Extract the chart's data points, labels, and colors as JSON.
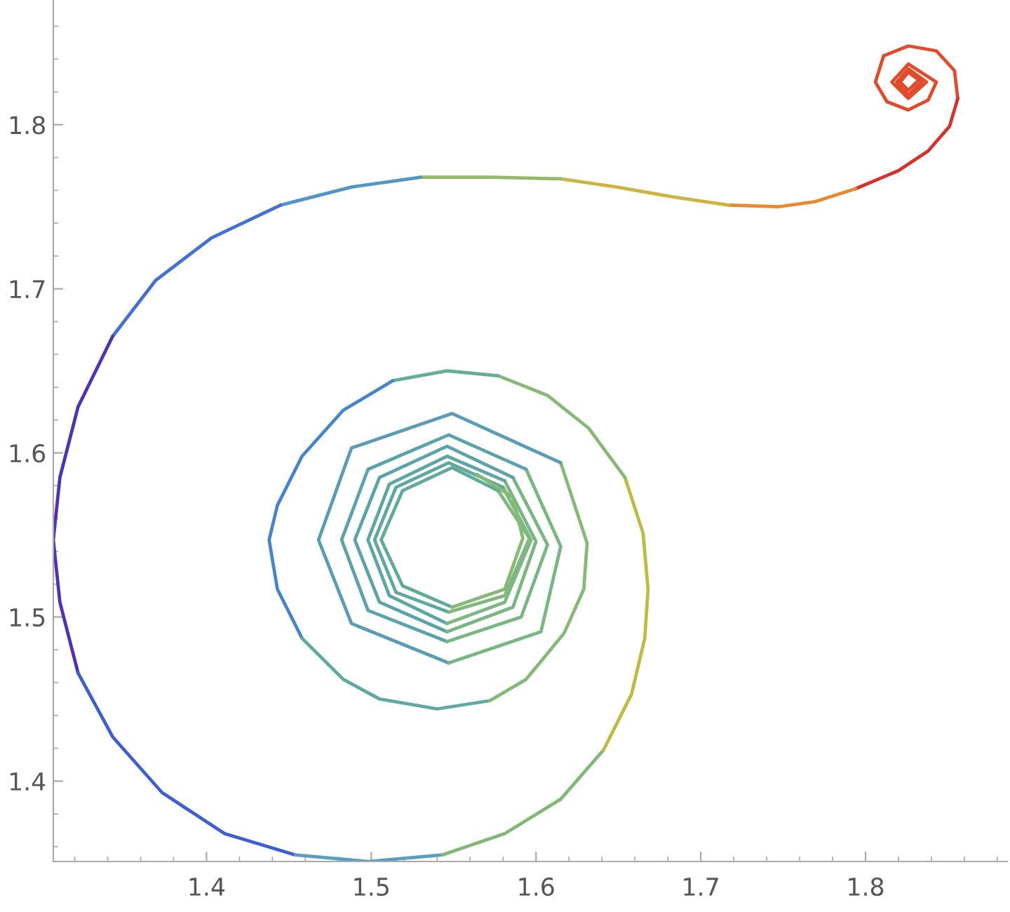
{
  "chart_data": {
    "type": "line",
    "xlim": [
      1.307,
      1.886
    ],
    "ylim": [
      1.351,
      1.876
    ],
    "xticks": [
      1.4,
      1.5,
      1.6,
      1.7,
      1.8
    ],
    "yticks": [
      1.4,
      1.5,
      1.6,
      1.7,
      1.8
    ],
    "grid": false,
    "legend": false,
    "marker": "none",
    "line_style": "solid",
    "series": [
      {
        "color": "#e24a2a",
        "x": [
          1.831,
          1.826,
          1.821,
          1.826,
          1.834,
          1.826,
          1.819,
          1.826,
          1.837,
          1.826,
          1.816,
          1.826,
          1.843,
          1.838,
          1.826,
          1.813,
          1.806,
          1.811,
          1.826,
          1.843,
          1.854,
          1.856
        ],
        "values": [
          1.826,
          1.821,
          1.826,
          1.832,
          1.826,
          1.818,
          1.826,
          1.834,
          1.826,
          1.816,
          1.826,
          1.837,
          1.826,
          1.815,
          1.809,
          1.814,
          1.826,
          1.842,
          1.848,
          1.845,
          1.833,
          1.816
        ]
      },
      {
        "color": "#d9302a",
        "x": [
          1.856,
          1.851,
          1.838,
          1.82,
          1.794
        ],
        "values": [
          1.816,
          1.799,
          1.784,
          1.772,
          1.761
        ]
      },
      {
        "color": "#e8892f",
        "x": [
          1.794,
          1.769,
          1.747,
          1.717
        ],
        "values": [
          1.761,
          1.753,
          1.75,
          1.751
        ]
      },
      {
        "color": "#cdb43c",
        "x": [
          1.717,
          1.683,
          1.649,
          1.615
        ],
        "values": [
          1.751,
          1.756,
          1.762,
          1.767
        ]
      },
      {
        "color": "#93ba66",
        "x": [
          1.615,
          1.573,
          1.53
        ],
        "values": [
          1.767,
          1.768,
          1.768
        ]
      },
      {
        "color": "#5296c6",
        "x": [
          1.53,
          1.488,
          1.445
        ],
        "values": [
          1.768,
          1.762,
          1.751
        ]
      },
      {
        "color": "#4170d6",
        "x": [
          1.445,
          1.403,
          1.369,
          1.343
        ],
        "values": [
          1.751,
          1.731,
          1.705,
          1.671
        ]
      },
      {
        "color": "#4f30b8",
        "x": [
          1.343,
          1.322,
          1.311,
          1.307,
          1.311,
          1.322
        ],
        "values": [
          1.671,
          1.628,
          1.585,
          1.547,
          1.509,
          1.466
        ]
      },
      {
        "color": "#3f5ed2",
        "x": [
          1.322,
          1.343,
          1.373,
          1.411,
          1.454
        ],
        "values": [
          1.466,
          1.427,
          1.393,
          1.368,
          1.355
        ]
      },
      {
        "color": "#5a9ec0",
        "x": [
          1.454,
          1.498,
          1.543
        ],
        "values": [
          1.355,
          1.351,
          1.355
        ]
      },
      {
        "color": "#82b876",
        "x": [
          1.543,
          1.581,
          1.615,
          1.641
        ],
        "values": [
          1.355,
          1.368,
          1.389,
          1.419
        ]
      },
      {
        "color": "#beba42",
        "x": [
          1.641,
          1.658,
          1.666,
          1.668,
          1.665,
          1.654
        ],
        "values": [
          1.419,
          1.453,
          1.487,
          1.517,
          1.551,
          1.585
        ]
      },
      {
        "color": "#86b876",
        "x": [
          1.654,
          1.632,
          1.607,
          1.577
        ],
        "values": [
          1.585,
          1.615,
          1.635,
          1.647
        ]
      },
      {
        "color": "#62ae96",
        "x": [
          1.577,
          1.546,
          1.513
        ],
        "values": [
          1.647,
          1.65,
          1.644
        ]
      },
      {
        "color": "#4684cc",
        "x": [
          1.513,
          1.483,
          1.458,
          1.443,
          1.438,
          1.443,
          1.458
        ],
        "values": [
          1.644,
          1.626,
          1.598,
          1.568,
          1.547,
          1.517,
          1.487
        ]
      },
      {
        "color": "#5eaaa0",
        "x": [
          1.458,
          1.483,
          1.505,
          1.54,
          1.572
        ],
        "values": [
          1.487,
          1.462,
          1.45,
          1.444,
          1.449
        ]
      },
      {
        "color": "#84ba76",
        "x": [
          1.572,
          1.594,
          1.617,
          1.629,
          1.631,
          1.615
        ],
        "values": [
          1.449,
          1.462,
          1.49,
          1.517,
          1.545,
          1.594
        ]
      },
      {
        "color": "#5a9cb6",
        "x": [
          1.615,
          1.549,
          1.488,
          1.468,
          1.488,
          1.547
        ],
        "values": [
          1.594,
          1.624,
          1.603,
          1.547,
          1.496,
          1.472
        ]
      },
      {
        "color": "#78b682",
        "x": [
          1.547,
          1.603,
          1.615,
          1.594
        ],
        "values": [
          1.472,
          1.491,
          1.543,
          1.59
        ]
      },
      {
        "color": "#5aa2ac",
        "x": [
          1.594,
          1.547,
          1.498,
          1.482,
          1.498,
          1.546
        ],
        "values": [
          1.59,
          1.611,
          1.59,
          1.547,
          1.504,
          1.485
        ]
      },
      {
        "color": "#78b682",
        "x": [
          1.546,
          1.591,
          1.607,
          1.586
        ],
        "values": [
          1.485,
          1.5,
          1.544,
          1.585
        ]
      },
      {
        "color": "#5aa4a8",
        "x": [
          1.586,
          1.546,
          1.505,
          1.49,
          1.505,
          1.546
        ],
        "values": [
          1.585,
          1.604,
          1.585,
          1.547,
          1.509,
          1.491
        ]
      },
      {
        "color": "#7ab682",
        "x": [
          1.546,
          1.586,
          1.6,
          1.581
        ],
        "values": [
          1.491,
          1.506,
          1.546,
          1.583
        ]
      },
      {
        "color": "#5ca6a4",
        "x": [
          1.581,
          1.546,
          1.511,
          1.498,
          1.511,
          1.546
        ],
        "values": [
          1.583,
          1.598,
          1.581,
          1.547,
          1.513,
          1.496
        ]
      },
      {
        "color": "#7cb880",
        "x": [
          1.546,
          1.581,
          1.597,
          1.58
        ],
        "values": [
          1.496,
          1.509,
          1.547,
          1.579
        ]
      },
      {
        "color": "#5ea8a0",
        "x": [
          1.58,
          1.547,
          1.515,
          1.502,
          1.515,
          1.547
        ],
        "values": [
          1.579,
          1.594,
          1.579,
          1.547,
          1.515,
          1.503
        ]
      },
      {
        "color": "#7eb87c",
        "x": [
          1.547,
          1.581,
          1.596,
          1.577
        ],
        "values": [
          1.503,
          1.513,
          1.548,
          1.577
        ]
      },
      {
        "color": "#60aa9c",
        "x": [
          1.577,
          1.549,
          1.519,
          1.506,
          1.519,
          1.549
        ],
        "values": [
          1.577,
          1.591,
          1.577,
          1.547,
          1.519,
          1.506
        ]
      },
      {
        "color": "#84ba74",
        "x": [
          1.549,
          1.581,
          1.592,
          1.586,
          1.564
        ],
        "values": [
          1.506,
          1.517,
          1.548,
          1.573,
          1.587
        ]
      }
    ]
  }
}
